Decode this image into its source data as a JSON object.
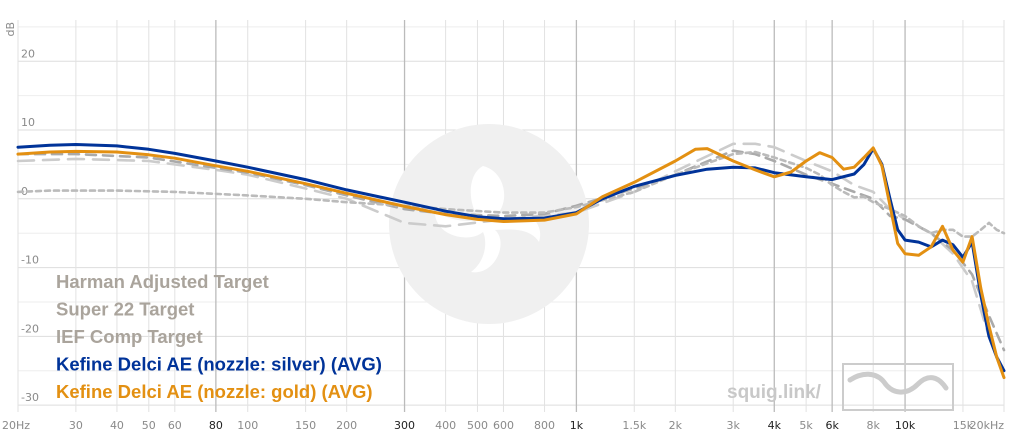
{
  "chart_data": {
    "type": "line",
    "ylabel": "dB",
    "xscale": "log",
    "xlim": [
      20,
      20000
    ],
    "ylim": [
      -31,
      26
    ],
    "y_ticks": [
      20,
      10,
      0,
      -10,
      -20,
      -30
    ],
    "x_ticks": [
      {
        "value": 20,
        "label": "20Hz",
        "major": false
      },
      {
        "value": 30,
        "label": "30",
        "major": false
      },
      {
        "value": 40,
        "label": "40",
        "major": false
      },
      {
        "value": 50,
        "label": "50",
        "major": false
      },
      {
        "value": 60,
        "label": "60",
        "major": false
      },
      {
        "value": 80,
        "label": "80",
        "major": true
      },
      {
        "value": 100,
        "label": "100",
        "major": false
      },
      {
        "value": 150,
        "label": "150",
        "major": false
      },
      {
        "value": 200,
        "label": "200",
        "major": false
      },
      {
        "value": 300,
        "label": "300",
        "major": true
      },
      {
        "value": 400,
        "label": "400",
        "major": false
      },
      {
        "value": 500,
        "label": "500",
        "major": false
      },
      {
        "value": 600,
        "label": "600",
        "major": false
      },
      {
        "value": 800,
        "label": "800",
        "major": false
      },
      {
        "value": 1000,
        "label": "1k",
        "major": true
      },
      {
        "value": 1500,
        "label": "1.5k",
        "major": false
      },
      {
        "value": 2000,
        "label": "2k",
        "major": false
      },
      {
        "value": 3000,
        "label": "3k",
        "major": false
      },
      {
        "value": 4000,
        "label": "4k",
        "major": true
      },
      {
        "value": 5000,
        "label": "5k",
        "major": false
      },
      {
        "value": 6000,
        "label": "6k",
        "major": true
      },
      {
        "value": 8000,
        "label": "8k",
        "major": false
      },
      {
        "value": 10000,
        "label": "10k",
        "major": true
      },
      {
        "value": 15000,
        "label": "15k",
        "major": false
      },
      {
        "value": 20000,
        "label": "20kHz",
        "major": false
      }
    ],
    "grid": true,
    "legend_position": "bottom-left",
    "series": [
      {
        "name": "Harman Adjusted Target",
        "color": "#cccccc",
        "dash": "long",
        "points": [
          [
            20,
            5.5
          ],
          [
            30,
            5.8
          ],
          [
            50,
            5.5
          ],
          [
            80,
            4.2
          ],
          [
            100,
            3.5
          ],
          [
            150,
            1.5
          ],
          [
            200,
            0
          ],
          [
            300,
            -3.5
          ],
          [
            400,
            -4
          ],
          [
            600,
            -3
          ],
          [
            1000,
            -2
          ],
          [
            1500,
            1
          ],
          [
            2000,
            4
          ],
          [
            3000,
            8
          ],
          [
            3500,
            8
          ],
          [
            4000,
            7.5
          ],
          [
            5000,
            5.5
          ],
          [
            6000,
            4
          ],
          [
            7000,
            2
          ],
          [
            8000,
            1
          ],
          [
            9000,
            -1.5
          ],
          [
            10000,
            -3
          ],
          [
            12000,
            -5
          ],
          [
            14000,
            -8
          ],
          [
            16000,
            -12
          ],
          [
            18000,
            -20
          ],
          [
            20000,
            -26
          ]
        ]
      },
      {
        "name": "Super 22 Target",
        "color": "#aaaaaa",
        "dash": "medium",
        "points": [
          [
            20,
            6.5
          ],
          [
            30,
            6.5
          ],
          [
            50,
            6
          ],
          [
            80,
            4.5
          ],
          [
            100,
            3.8
          ],
          [
            150,
            2
          ],
          [
            200,
            0.5
          ],
          [
            300,
            -1.5
          ],
          [
            400,
            -2.2
          ],
          [
            600,
            -2.5
          ],
          [
            800,
            -2.2
          ],
          [
            1000,
            -1
          ],
          [
            1500,
            1.5
          ],
          [
            2000,
            3.5
          ],
          [
            3000,
            7
          ],
          [
            3500,
            6.5
          ],
          [
            4000,
            5.5
          ],
          [
            5000,
            3.5
          ],
          [
            6000,
            2.2
          ],
          [
            7000,
            1
          ],
          [
            8000,
            0
          ],
          [
            9000,
            -2.5
          ],
          [
            10000,
            -3
          ],
          [
            12000,
            -5
          ],
          [
            14000,
            -7.5
          ],
          [
            16000,
            -11
          ],
          [
            18000,
            -17
          ],
          [
            20000,
            -22
          ]
        ]
      },
      {
        "name": "IEF Comp Target",
        "color": "#bbbbbb",
        "dash": "short",
        "points": [
          [
            20,
            1
          ],
          [
            25,
            1.2
          ],
          [
            40,
            1.2
          ],
          [
            60,
            1
          ],
          [
            100,
            0.5
          ],
          [
            150,
            0
          ],
          [
            200,
            -0.5
          ],
          [
            300,
            -1
          ],
          [
            400,
            -1.5
          ],
          [
            600,
            -2
          ],
          [
            800,
            -2
          ],
          [
            1000,
            -1.2
          ],
          [
            1500,
            1
          ],
          [
            2000,
            3.5
          ],
          [
            3000,
            6.5
          ],
          [
            3500,
            6.8
          ],
          [
            4000,
            6
          ],
          [
            5000,
            4.5
          ],
          [
            5500,
            3.5
          ],
          [
            6000,
            2
          ],
          [
            6500,
            1
          ],
          [
            7000,
            0.2
          ],
          [
            7500,
            0.3
          ],
          [
            8000,
            -0.5
          ],
          [
            9000,
            -1.5
          ],
          [
            10000,
            -2.5
          ],
          [
            11000,
            -4
          ],
          [
            12000,
            -5
          ],
          [
            13000,
            -4.5
          ],
          [
            14000,
            -4.5
          ],
          [
            15000,
            -5.5
          ],
          [
            16000,
            -5.5
          ],
          [
            17000,
            -4.5
          ],
          [
            18000,
            -3.5
          ],
          [
            19000,
            -4.5
          ],
          [
            20000,
            -5
          ]
        ]
      },
      {
        "name": "Kefine Delci AE (nozzle: silver) (AVG)",
        "color": "#003399",
        "dash": "solid",
        "points": [
          [
            20,
            7.5
          ],
          [
            25,
            7.8
          ],
          [
            30,
            7.9
          ],
          [
            40,
            7.7
          ],
          [
            50,
            7.2
          ],
          [
            60,
            6.6
          ],
          [
            80,
            5.5
          ],
          [
            100,
            4.6
          ],
          [
            150,
            2.8
          ],
          [
            200,
            1.3
          ],
          [
            300,
            -0.5
          ],
          [
            400,
            -1.8
          ],
          [
            500,
            -2.6
          ],
          [
            600,
            -2.9
          ],
          [
            800,
            -2.8
          ],
          [
            1000,
            -2
          ],
          [
            1200,
            0
          ],
          [
            1500,
            1.8
          ],
          [
            2000,
            3.4
          ],
          [
            2500,
            4.3
          ],
          [
            3000,
            4.6
          ],
          [
            3500,
            4.5
          ],
          [
            4000,
            3.8
          ],
          [
            5000,
            3.2
          ],
          [
            6000,
            2.8
          ],
          [
            7000,
            3.6
          ],
          [
            7500,
            5
          ],
          [
            8000,
            7.3
          ],
          [
            8500,
            5
          ],
          [
            9000,
            0
          ],
          [
            9500,
            -4.5
          ],
          [
            10000,
            -6
          ],
          [
            11000,
            -6.3
          ],
          [
            12000,
            -7
          ],
          [
            13000,
            -6
          ],
          [
            14000,
            -6.7
          ],
          [
            15000,
            -8.5
          ],
          [
            16000,
            -6.3
          ],
          [
            17000,
            -14
          ],
          [
            18000,
            -20
          ],
          [
            19000,
            -23
          ],
          [
            20000,
            -25
          ]
        ]
      },
      {
        "name": "Kefine Delci AE (nozzle: gold) (AVG)",
        "color": "#e39012",
        "dash": "solid",
        "points": [
          [
            20,
            6.5
          ],
          [
            25,
            6.8
          ],
          [
            30,
            6.9
          ],
          [
            40,
            6.8
          ],
          [
            50,
            6.4
          ],
          [
            60,
            5.9
          ],
          [
            80,
            4.8
          ],
          [
            100,
            4
          ],
          [
            150,
            2.2
          ],
          [
            200,
            0.8
          ],
          [
            300,
            -1.1
          ],
          [
            400,
            -2.3
          ],
          [
            500,
            -3
          ],
          [
            600,
            -3.3
          ],
          [
            800,
            -3.1
          ],
          [
            1000,
            -2.2
          ],
          [
            1200,
            0.3
          ],
          [
            1500,
            2.4
          ],
          [
            2000,
            5.5
          ],
          [
            2300,
            7.2
          ],
          [
            2500,
            7.3
          ],
          [
            3000,
            5.5
          ],
          [
            3500,
            4.2
          ],
          [
            4000,
            3.2
          ],
          [
            4500,
            3.9
          ],
          [
            5000,
            5.5
          ],
          [
            5500,
            6.7
          ],
          [
            6000,
            6
          ],
          [
            6500,
            4.3
          ],
          [
            7000,
            4.6
          ],
          [
            7500,
            6
          ],
          [
            8000,
            7.4
          ],
          [
            8500,
            4.8
          ],
          [
            9000,
            -1
          ],
          [
            9500,
            -6.5
          ],
          [
            10000,
            -8
          ],
          [
            11000,
            -8.2
          ],
          [
            12000,
            -7
          ],
          [
            13000,
            -4
          ],
          [
            14000,
            -7.5
          ],
          [
            15000,
            -9.2
          ],
          [
            16000,
            -5.5
          ],
          [
            17000,
            -13
          ],
          [
            18000,
            -18.5
          ],
          [
            19000,
            -23
          ],
          [
            20000,
            -26
          ]
        ]
      }
    ]
  },
  "watermark": {
    "text": "squig.link/"
  }
}
